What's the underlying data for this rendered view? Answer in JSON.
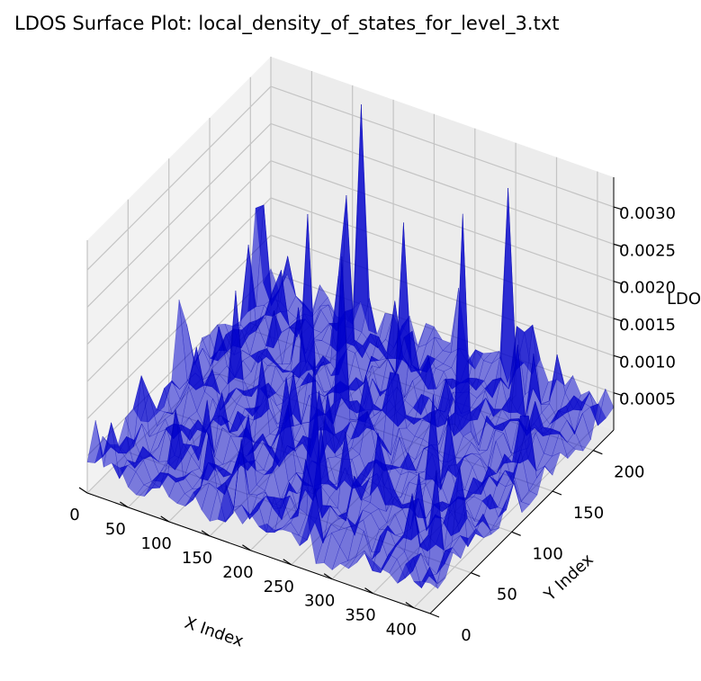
{
  "chart_data": {
    "type": "surface",
    "title": "LDOS Surface Plot: local_density_of_states_for_level_3.txt",
    "xlabel": "X Index",
    "ylabel": "Y Index",
    "zlabel": "LDOS",
    "xlim": [
      0,
      420
    ],
    "ylim": [
      0,
      225
    ],
    "zlim": [
      0,
      0.0034
    ],
    "x_ticks": [
      0,
      50,
      100,
      150,
      200,
      250,
      300,
      350,
      400
    ],
    "y_ticks": [
      0,
      50,
      100,
      150,
      200
    ],
    "z_ticks": [
      0.0005,
      0.001,
      0.0015,
      0.002,
      0.0025,
      0.003
    ],
    "z_tick_labels": [
      "0.0005",
      "0.0010",
      "0.0015",
      "0.0020",
      "0.0025",
      "0.0030"
    ],
    "surface_color": "#0000cc",
    "surface_alpha": 0.5,
    "grid": true,
    "peaks": [
      {
        "x": 5,
        "y": 205,
        "z": 0.0025
      },
      {
        "x": 10,
        "y": 60,
        "z": 0.0014
      },
      {
        "x": 120,
        "y": 215,
        "z": 0.0031
      },
      {
        "x": 130,
        "y": 190,
        "z": 0.0029
      },
      {
        "x": 120,
        "y": 150,
        "z": 0.0022
      },
      {
        "x": 200,
        "y": 185,
        "z": 0.0028
      },
      {
        "x": 215,
        "y": 175,
        "z": 0.0026
      },
      {
        "x": 190,
        "y": 120,
        "z": 0.0024
      },
      {
        "x": 235,
        "y": 100,
        "z": 0.0021
      },
      {
        "x": 300,
        "y": 215,
        "z": 0.0024
      },
      {
        "x": 310,
        "y": 150,
        "z": 0.0029
      },
      {
        "x": 300,
        "y": 60,
        "z": 0.002
      },
      {
        "x": 330,
        "y": 90,
        "z": 0.0025
      },
      {
        "x": 400,
        "y": 60,
        "z": 0.0023
      },
      {
        "x": 395,
        "y": 140,
        "z": 0.0018
      },
      {
        "x": 60,
        "y": 120,
        "z": 0.0016
      },
      {
        "x": 160,
        "y": 40,
        "z": 0.0015
      },
      {
        "x": 250,
        "y": 30,
        "z": 0.0017
      },
      {
        "x": 80,
        "y": 30,
        "z": 0.0009
      },
      {
        "x": 350,
        "y": 200,
        "z": 0.0012
      }
    ]
  }
}
